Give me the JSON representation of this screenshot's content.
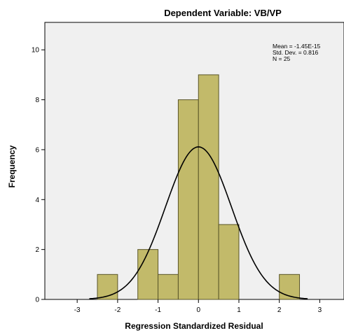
{
  "chart_data": {
    "type": "bar",
    "title": "Dependent Variable: VB/VP",
    "xlabel": "Regression Standardized Residual",
    "ylabel": "Frequency",
    "xlim": [
      -3.8,
      3.6
    ],
    "ylim": [
      0,
      11.1
    ],
    "x_ticks": [
      "-3",
      "-2",
      "-1",
      "0",
      "1",
      "2",
      "3"
    ],
    "x_tick_values": [
      -3,
      -2,
      -1,
      0,
      1,
      2,
      3
    ],
    "y_ticks": [
      "0",
      "2",
      "4",
      "6",
      "8",
      "10"
    ],
    "y_tick_values": [
      0,
      2,
      4,
      6,
      8,
      10
    ],
    "bin_width": 0.5,
    "bins": [
      {
        "start": -2.5,
        "end": -2.0,
        "value": 1
      },
      {
        "start": -2.0,
        "end": -1.5,
        "value": 0
      },
      {
        "start": -1.5,
        "end": -1.0,
        "value": 2
      },
      {
        "start": -1.0,
        "end": -0.5,
        "value": 1
      },
      {
        "start": -0.5,
        "end": 0.0,
        "value": 8
      },
      {
        "start": 0.0,
        "end": 0.5,
        "value": 9
      },
      {
        "start": 0.5,
        "end": 1.0,
        "value": 3
      },
      {
        "start": 1.0,
        "end": 1.5,
        "value": 0
      },
      {
        "start": 1.5,
        "end": 2.0,
        "value": 0
      },
      {
        "start": 2.0,
        "end": 2.5,
        "value": 1
      }
    ],
    "normal_curve": {
      "mean": 0,
      "sd": 0.816,
      "n": 25
    },
    "stats_lines": [
      "Mean = -1.45E-15",
      "Std. Dev. = 0.816",
      "N = 25"
    ],
    "grid": false,
    "colors": {
      "bar_fill": "#c2ba6a",
      "bar_stroke": "#5a5528",
      "plot_bg": "#f0f0f0",
      "curve": "#000000"
    }
  }
}
